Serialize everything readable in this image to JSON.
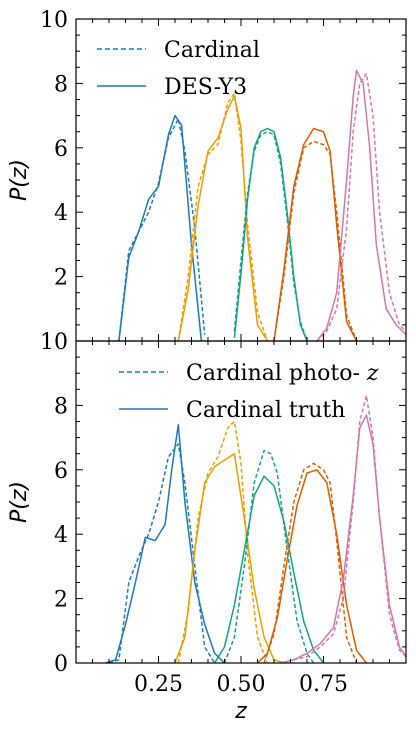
{
  "colors": {
    "blue": "#1f77b4",
    "orange": "#e69f00",
    "green": "#16a085",
    "vermillion": "#d55e00",
    "pink": "#cc79a7"
  },
  "chart_data": [
    {
      "type": "line",
      "panel": "top",
      "xlabel": "",
      "ylabel": "P(z)",
      "xlim": [
        0.0,
        1.0
      ],
      "ylim": [
        0,
        10
      ],
      "yticks": [
        0,
        2,
        4,
        6,
        8,
        10
      ],
      "ytick_labels": [
        "",
        "2",
        "4",
        "6",
        "8",
        "10"
      ],
      "xticks": [
        0.25,
        0.5,
        0.75
      ],
      "xtick_labels": [],
      "grid": false,
      "legend": {
        "position": "top-left",
        "entries": [
          {
            "label": "Cardinal",
            "style": "dashed"
          },
          {
            "label": "DES-Y3",
            "style": "solid"
          }
        ]
      },
      "series": [
        {
          "bin": 1,
          "dataset": "Cardinal",
          "style": "dashed",
          "color": "blue",
          "x": [
            0.13,
            0.16,
            0.19,
            0.22,
            0.25,
            0.28,
            0.31,
            0.33,
            0.36,
            0.39
          ],
          "y": [
            0.0,
            2.8,
            3.4,
            4.0,
            4.9,
            6.3,
            6.9,
            5.9,
            3.5,
            0.2
          ]
        },
        {
          "bin": 1,
          "dataset": "DES-Y3",
          "style": "solid",
          "color": "blue",
          "x": [
            0.13,
            0.16,
            0.19,
            0.22,
            0.25,
            0.28,
            0.3,
            0.32,
            0.35,
            0.38
          ],
          "y": [
            0.0,
            2.6,
            3.4,
            4.4,
            4.8,
            6.4,
            7.0,
            6.7,
            3.0,
            0.0
          ]
        },
        {
          "bin": 2,
          "dataset": "Cardinal",
          "style": "dashed",
          "color": "orange",
          "x": [
            0.31,
            0.34,
            0.37,
            0.4,
            0.43,
            0.46,
            0.48,
            0.5,
            0.52,
            0.55,
            0.58
          ],
          "y": [
            0.0,
            2.0,
            4.8,
            5.8,
            6.1,
            7.4,
            7.7,
            6.2,
            3.6,
            0.9,
            0.0
          ]
        },
        {
          "bin": 2,
          "dataset": "DES-Y3",
          "style": "solid",
          "color": "orange",
          "x": [
            0.31,
            0.34,
            0.37,
            0.4,
            0.43,
            0.46,
            0.48,
            0.5,
            0.52,
            0.55,
            0.58
          ],
          "y": [
            0.0,
            1.6,
            4.2,
            5.9,
            6.3,
            7.2,
            7.6,
            6.6,
            3.2,
            0.5,
            0.0
          ]
        },
        {
          "bin": 3,
          "dataset": "Cardinal",
          "style": "dashed",
          "color": "green",
          "x": [
            0.48,
            0.5,
            0.52,
            0.54,
            0.56,
            0.58,
            0.6,
            0.62,
            0.64,
            0.66,
            0.68,
            0.7
          ],
          "y": [
            0.3,
            2.5,
            4.6,
            5.9,
            6.4,
            6.5,
            6.4,
            5.5,
            3.8,
            1.8,
            0.6,
            0.0
          ]
        },
        {
          "bin": 3,
          "dataset": "DES-Y3",
          "style": "solid",
          "color": "green",
          "x": [
            0.48,
            0.5,
            0.52,
            0.54,
            0.56,
            0.58,
            0.6,
            0.62,
            0.64,
            0.66,
            0.68,
            0.7
          ],
          "y": [
            0.1,
            2.1,
            4.4,
            6.0,
            6.5,
            6.6,
            6.5,
            5.7,
            4.0,
            2.0,
            0.5,
            0.0
          ]
        },
        {
          "bin": 4,
          "dataset": "Cardinal",
          "style": "dashed",
          "color": "vermillion",
          "x": [
            0.6,
            0.63,
            0.66,
            0.69,
            0.72,
            0.75,
            0.77,
            0.79,
            0.82,
            0.85
          ],
          "y": [
            0.0,
            2.0,
            4.6,
            6.0,
            6.2,
            6.1,
            5.8,
            4.0,
            0.8,
            0.0
          ]
        },
        {
          "bin": 4,
          "dataset": "DES-Y3",
          "style": "solid",
          "color": "vermillion",
          "x": [
            0.6,
            0.63,
            0.66,
            0.69,
            0.72,
            0.75,
            0.77,
            0.79,
            0.82,
            0.85
          ],
          "y": [
            0.0,
            2.2,
            4.8,
            6.1,
            6.6,
            6.5,
            5.9,
            3.6,
            0.6,
            0.0
          ]
        },
        {
          "bin": 5,
          "dataset": "Cardinal",
          "style": "dashed",
          "color": "pink",
          "x": [
            0.73,
            0.76,
            0.79,
            0.82,
            0.84,
            0.86,
            0.88,
            0.9,
            0.92,
            0.95,
            0.98,
            1.0
          ],
          "y": [
            0.0,
            0.3,
            1.0,
            3.5,
            6.5,
            8.0,
            8.3,
            7.0,
            4.0,
            1.5,
            0.5,
            0.3
          ]
        },
        {
          "bin": 5,
          "dataset": "DES-Y3",
          "style": "solid",
          "color": "pink",
          "x": [
            0.73,
            0.76,
            0.79,
            0.82,
            0.84,
            0.85,
            0.87,
            0.89,
            0.91,
            0.94,
            0.97,
            1.0
          ],
          "y": [
            0.0,
            0.4,
            1.5,
            5.0,
            7.6,
            8.4,
            8.0,
            6.0,
            3.0,
            1.0,
            0.5,
            0.2
          ]
        }
      ]
    },
    {
      "type": "line",
      "panel": "bottom",
      "xlabel": "z",
      "ylabel": "P(z)",
      "xlim": [
        0.0,
        1.0
      ],
      "ylim": [
        0,
        10
      ],
      "yticks": [
        0,
        2,
        4,
        6,
        8,
        10
      ],
      "ytick_labels": [
        "0",
        "2",
        "4",
        "6",
        "8",
        "10"
      ],
      "xticks": [
        0.25,
        0.5,
        0.75
      ],
      "xtick_labels": [
        "0.25",
        "0.50",
        "0.75"
      ],
      "grid": false,
      "legend": {
        "position": "top-right",
        "entries": [
          {
            "label": "Cardinal photo-z",
            "style": "dashed"
          },
          {
            "label": "Cardinal truth",
            "style": "solid"
          }
        ]
      },
      "series": [
        {
          "bin": 1,
          "dataset": "Cardinal photo-z",
          "style": "dashed",
          "color": "blue",
          "x": [
            0.1,
            0.13,
            0.16,
            0.19,
            0.22,
            0.25,
            0.28,
            0.31,
            0.33,
            0.36,
            0.39,
            0.42
          ],
          "y": [
            0.0,
            0.1,
            2.5,
            3.3,
            4.0,
            5.0,
            6.4,
            6.8,
            5.6,
            3.0,
            0.5,
            0.0
          ]
        },
        {
          "bin": 1,
          "dataset": "Cardinal truth",
          "style": "solid",
          "color": "blue",
          "x": [
            0.09,
            0.12,
            0.15,
            0.18,
            0.21,
            0.24,
            0.27,
            0.29,
            0.31,
            0.33,
            0.36,
            0.39,
            0.42,
            0.45
          ],
          "y": [
            0.0,
            0.1,
            1.2,
            2.5,
            3.9,
            3.8,
            4.3,
            6.0,
            7.4,
            5.0,
            2.5,
            1.2,
            0.3,
            0.0
          ]
        },
        {
          "bin": 2,
          "dataset": "Cardinal photo-z",
          "style": "dashed",
          "color": "orange",
          "x": [
            0.31,
            0.34,
            0.37,
            0.4,
            0.43,
            0.46,
            0.48,
            0.5,
            0.52,
            0.55,
            0.58
          ],
          "y": [
            0.0,
            1.6,
            4.5,
            5.9,
            6.4,
            7.3,
            7.5,
            6.2,
            3.4,
            0.8,
            0.0
          ]
        },
        {
          "bin": 2,
          "dataset": "Cardinal truth",
          "style": "solid",
          "color": "orange",
          "x": [
            0.3,
            0.33,
            0.36,
            0.39,
            0.42,
            0.45,
            0.48,
            0.51,
            0.54,
            0.57,
            0.6,
            0.63
          ],
          "y": [
            0.0,
            0.8,
            3.5,
            5.6,
            6.1,
            6.3,
            6.5,
            4.5,
            2.3,
            0.8,
            0.1,
            0.0
          ]
        },
        {
          "bin": 3,
          "dataset": "Cardinal photo-z",
          "style": "dashed",
          "color": "green",
          "x": [
            0.45,
            0.48,
            0.51,
            0.54,
            0.57,
            0.59,
            0.61,
            0.64,
            0.67,
            0.7,
            0.72
          ],
          "y": [
            0.0,
            0.8,
            3.0,
            5.6,
            6.6,
            6.5,
            5.9,
            3.5,
            1.3,
            0.3,
            0.0
          ]
        },
        {
          "bin": 3,
          "dataset": "Cardinal truth",
          "style": "solid",
          "color": "green",
          "x": [
            0.42,
            0.45,
            0.48,
            0.51,
            0.54,
            0.57,
            0.6,
            0.63,
            0.66,
            0.69,
            0.72,
            0.75
          ],
          "y": [
            0.0,
            0.5,
            1.8,
            3.5,
            5.2,
            5.8,
            5.5,
            4.4,
            2.8,
            1.3,
            0.4,
            0.0
          ]
        },
        {
          "bin": 4,
          "dataset": "Cardinal photo-z",
          "style": "dashed",
          "color": "vermillion",
          "x": [
            0.57,
            0.6,
            0.63,
            0.66,
            0.69,
            0.72,
            0.75,
            0.77,
            0.79,
            0.82,
            0.85
          ],
          "y": [
            0.0,
            0.9,
            3.0,
            5.0,
            6.0,
            6.2,
            6.0,
            5.6,
            3.8,
            0.8,
            0.0
          ]
        },
        {
          "bin": 4,
          "dataset": "Cardinal truth",
          "style": "solid",
          "color": "vermillion",
          "x": [
            0.55,
            0.58,
            0.61,
            0.64,
            0.67,
            0.7,
            0.73,
            0.76,
            0.79,
            0.82,
            0.85,
            0.88
          ],
          "y": [
            0.0,
            0.3,
            1.4,
            3.2,
            4.9,
            5.9,
            6.0,
            5.6,
            4.0,
            1.8,
            0.4,
            0.0
          ]
        },
        {
          "bin": 5,
          "dataset": "Cardinal photo-z",
          "style": "dashed",
          "color": "pink",
          "x": [
            0.62,
            0.66,
            0.7,
            0.74,
            0.78,
            0.81,
            0.84,
            0.86,
            0.88,
            0.9,
            0.92,
            0.95,
            0.98,
            1.0
          ],
          "y": [
            0.0,
            0.1,
            0.2,
            0.5,
            0.9,
            2.0,
            5.0,
            7.5,
            8.3,
            7.0,
            4.5,
            1.5,
            0.4,
            0.2
          ]
        },
        {
          "bin": 5,
          "dataset": "Cardinal truth",
          "style": "solid",
          "color": "pink",
          "x": [
            0.62,
            0.66,
            0.7,
            0.74,
            0.78,
            0.81,
            0.84,
            0.86,
            0.88,
            0.9,
            0.92,
            0.95,
            0.98,
            1.0
          ],
          "y": [
            0.0,
            0.1,
            0.3,
            0.6,
            1.1,
            2.6,
            5.2,
            7.3,
            7.7,
            6.8,
            4.5,
            1.8,
            0.5,
            0.2
          ]
        }
      ]
    }
  ]
}
